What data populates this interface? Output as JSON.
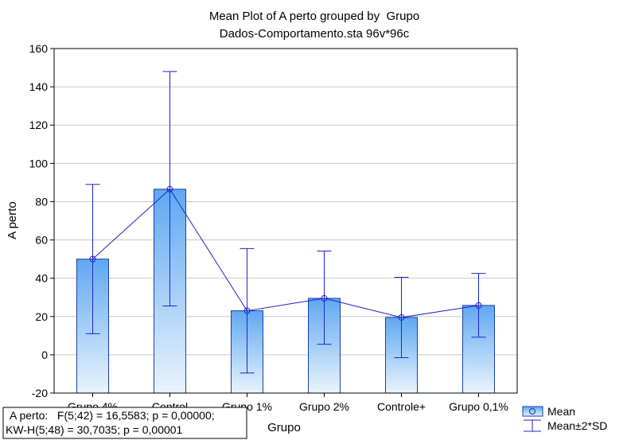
{
  "chart_data": {
    "type": "bar",
    "title": "Mean Plot of A perto grouped by  Grupo",
    "subtitle": "Dados-Comportamento.sta 96v*96c",
    "xlabel": "Grupo",
    "ylabel": "A perto",
    "ylim": [
      -20,
      160
    ],
    "yticks": [
      -20,
      0,
      20,
      40,
      60,
      80,
      100,
      120,
      140,
      160
    ],
    "categories": [
      "Grupo 4%",
      "Control",
      "Grupo 1%",
      "Grupo 2%",
      "Controle+",
      "Grupo 0,1%"
    ],
    "series": [
      {
        "name": "Mean",
        "values": [
          50,
          86.5,
          23,
          29.5,
          19.5,
          25.8
        ]
      },
      {
        "name": "Mean±2*SD",
        "upper": [
          89,
          148,
          55.5,
          54.2,
          40.5,
          42.5
        ],
        "lower": [
          11,
          25.5,
          -9.5,
          5.5,
          -1.5,
          9.2
        ]
      }
    ],
    "grid": true,
    "legend": "bottom-right",
    "colors": {
      "bar_top": "#5fa8f2",
      "bar_bottom": "#eaf4fd",
      "bar_edge": "#1a3fa8",
      "line": "#2222cc",
      "grid": "#c8c8c8"
    },
    "stats": {
      "line1": "A perto:   F(5;42) = 16,5583; p = 0,00000;",
      "line2": "KW-H(5;48) = 30,7035; p = 0,00001"
    }
  }
}
